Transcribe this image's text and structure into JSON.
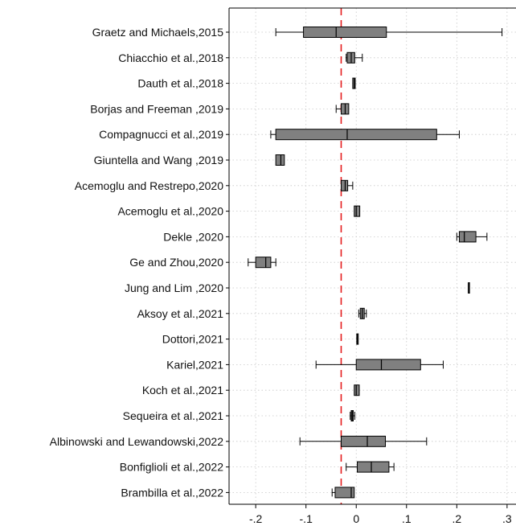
{
  "chart_data": {
    "type": "box",
    "orientation": "horizontal",
    "xlim": [
      -0.245,
      0.305
    ],
    "xticks": [
      -0.2,
      -0.1,
      0,
      0.1,
      0.2,
      0.3
    ],
    "xtick_labels": [
      "-.2",
      "-.1",
      "0",
      ".1",
      ".2",
      ".3"
    ],
    "reference_line": {
      "x": -0.03,
      "style": "dashed",
      "color": "#e41a1c"
    },
    "grid": "dotted",
    "box_color": "#808080",
    "categories": [
      "Graetz and Michaels,2015",
      "Chiacchio et al.,2018",
      "Dauth et al.,2018",
      "Borjas and Freeman ,2019",
      "Compagnucci et al.,2019",
      "Giuntella and Wang ,2019",
      "Acemoglu and Restrepo,2020",
      "Acemoglu et al.,2020",
      "Dekle ,2020",
      "Ge and Zhou,2020",
      "Jung and Lim ,2020",
      "Aksoy et al.,2021",
      "Dottori,2021",
      "Kariel,2021",
      "Koch et al.,2021",
      "Sequeira et al.,2021",
      "Albinowski and Lewandowski,2022",
      "Bonfiglioli et al.,2022",
      "Brambilla et al.,2022"
    ],
    "boxes": [
      {
        "min": -0.16,
        "q1": -0.105,
        "median": -0.04,
        "q3": 0.06,
        "max": 0.29
      },
      {
        "min": -0.02,
        "q1": -0.018,
        "median": -0.01,
        "q3": -0.003,
        "max": 0.012
      },
      {
        "min": -0.007,
        "q1": -0.007,
        "median": -0.004,
        "q3": -0.002,
        "max": -0.002
      },
      {
        "min": -0.04,
        "q1": -0.03,
        "median": -0.022,
        "q3": -0.015,
        "max": -0.015
      },
      {
        "min": -0.17,
        "q1": -0.16,
        "median": -0.018,
        "q3": 0.16,
        "max": 0.205
      },
      {
        "min": -0.16,
        "q1": -0.16,
        "median": -0.15,
        "q3": -0.143,
        "max": -0.143
      },
      {
        "min": -0.03,
        "q1": -0.03,
        "median": -0.022,
        "q3": -0.017,
        "max": -0.007
      },
      {
        "min": -0.004,
        "q1": -0.004,
        "median": 0.0,
        "q3": 0.007,
        "max": 0.007
      },
      {
        "min": 0.2,
        "q1": 0.205,
        "median": 0.215,
        "q3": 0.238,
        "max": 0.26
      },
      {
        "min": -0.215,
        "q1": -0.2,
        "median": -0.18,
        "q3": -0.17,
        "max": -0.16
      },
      {
        "min": 0.223,
        "q1": 0.223,
        "median": 0.223,
        "q3": 0.223,
        "max": 0.223
      },
      {
        "min": 0.005,
        "q1": 0.008,
        "median": 0.012,
        "q3": 0.016,
        "max": 0.02
      },
      {
        "min": 0.001,
        "q1": 0.001,
        "median": 0.002,
        "q3": 0.004,
        "max": 0.004
      },
      {
        "min": -0.08,
        "q1": 0.0,
        "median": 0.05,
        "q3": 0.128,
        "max": 0.173
      },
      {
        "min": -0.004,
        "q1": -0.004,
        "median": 0.0,
        "q3": 0.006,
        "max": 0.006
      },
      {
        "min": -0.012,
        "q1": -0.01,
        "median": -0.008,
        "q3": -0.006,
        "max": -0.003
      },
      {
        "min": -0.112,
        "q1": -0.03,
        "median": 0.022,
        "q3": 0.058,
        "max": 0.14
      },
      {
        "min": -0.02,
        "q1": 0.002,
        "median": 0.03,
        "q3": 0.065,
        "max": 0.075
      },
      {
        "min": -0.048,
        "q1": -0.042,
        "median": -0.01,
        "q3": -0.004,
        "max": -0.004
      }
    ]
  }
}
